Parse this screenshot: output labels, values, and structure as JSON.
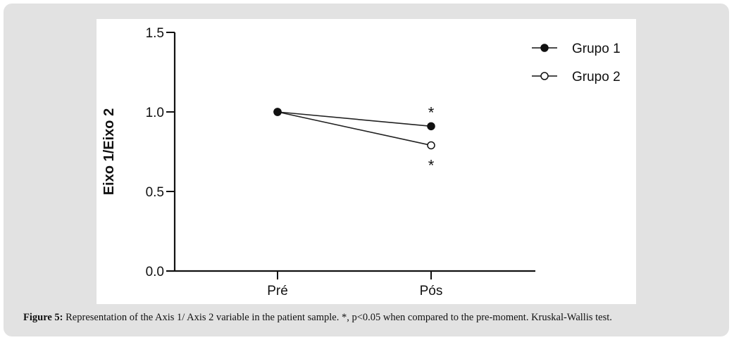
{
  "chart_data": {
    "type": "line",
    "categories": [
      "Pré",
      "Pós"
    ],
    "series": [
      {
        "name": "Grupo 1",
        "values": [
          1.0,
          0.91
        ],
        "marker": "filled-circle"
      },
      {
        "name": "Grupo 2",
        "values": [
          1.0,
          0.79
        ],
        "marker": "open-circle"
      }
    ],
    "ylabel": "Eixo 1/Eixo 2",
    "xlabel": "",
    "ylim": [
      0,
      1.5
    ],
    "yticks": [
      "0.0",
      "0.5",
      "1.0",
      "1.5"
    ],
    "annotations": [
      {
        "text": "*",
        "category": "Pós",
        "series": "Grupo 1",
        "position": "above"
      },
      {
        "text": "*",
        "category": "Pós",
        "series": "Grupo 2",
        "position": "below"
      }
    ],
    "legend": "top-right",
    "grid": false
  },
  "caption": {
    "label": "Figure 5:",
    "text": " Representation of the Axis 1/ Axis 2 variable in the patient sample. *, p<0.05 when compared to the pre-moment. Kruskal-Wallis test."
  }
}
